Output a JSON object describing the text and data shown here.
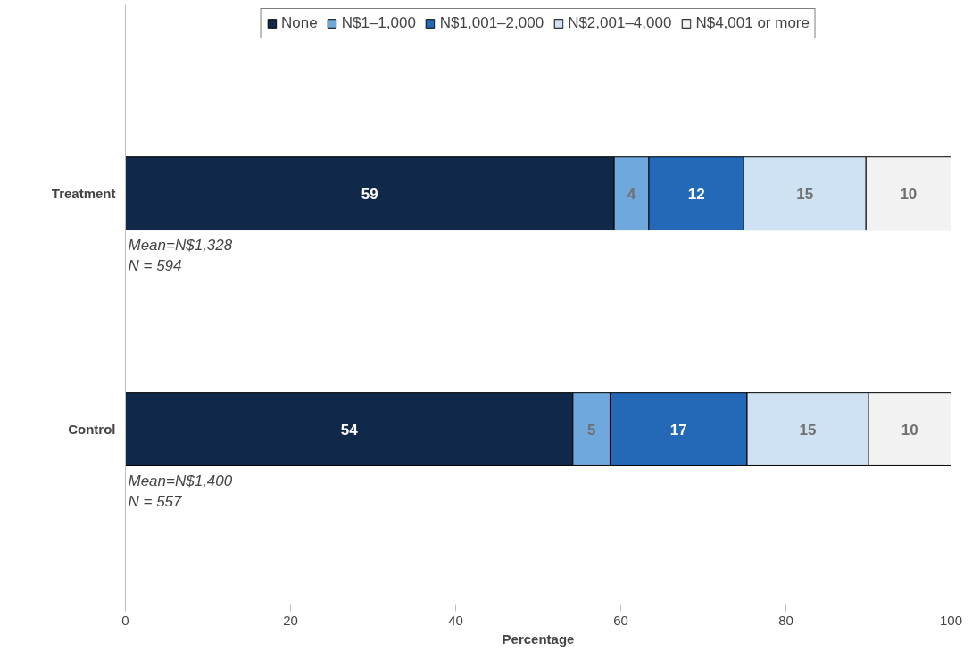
{
  "chart_data": {
    "type": "bar",
    "orientation": "horizontal",
    "stacked": true,
    "xlabel": "Percentage",
    "categories": [
      "Treatment",
      "Control"
    ],
    "series": [
      {
        "name": "None",
        "color": "#10284a",
        "values": [
          59.2,
          54.2
        ],
        "value_labels": [
          "59",
          "54"
        ]
      },
      {
        "name": "N$1–1,000",
        "color": "#6fa8dc",
        "values": [
          4.2,
          4.5
        ],
        "value_labels": [
          "4",
          "5"
        ]
      },
      {
        "name": "N$1,001–2,000",
        "color": "#2369b8",
        "values": [
          11.5,
          16.6
        ],
        "value_labels": [
          "12",
          "17"
        ]
      },
      {
        "name": "N$2,001–4,000",
        "color": "#cfe2f3",
        "values": [
          14.8,
          14.7
        ],
        "value_labels": [
          "15",
          "15"
        ]
      },
      {
        "name": "N$4,001 or more",
        "color": "#f2f2f2",
        "values": [
          10.3,
          10.0
        ],
        "value_labels": [
          "10",
          "10"
        ]
      }
    ],
    "xlim": [
      0,
      100
    ],
    "xticks": [
      0,
      20,
      40,
      60,
      80,
      100
    ],
    "grid": false,
    "legend": "top",
    "annotations": [
      "Mean=N$1,328\nN = 594",
      "Mean=N$1,400\nN = 557"
    ]
  }
}
